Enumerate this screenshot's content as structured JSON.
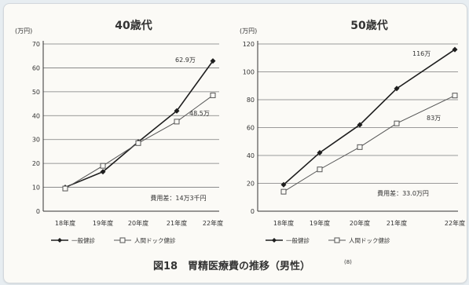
{
  "chart_data": [
    {
      "type": "line",
      "title": "40歳代",
      "y_unit": "(万円)",
      "ylim": [
        0,
        70
      ],
      "y_ticks": [
        "0",
        "10",
        "20",
        "30",
        "40",
        "50",
        "60",
        "70"
      ],
      "categories": [
        "18年度",
        "19年度",
        "20年度",
        "21年度",
        "22年度"
      ],
      "grid": "horizontal",
      "series": [
        {
          "name": "一般健診",
          "marker": "filled-diamond",
          "values": [
            10,
            16.5,
            29,
            42,
            62.9
          ]
        },
        {
          "name": "人間ドック健診",
          "marker": "open-square",
          "values": [
            9.5,
            19,
            28.5,
            37.5,
            48.5
          ]
        }
      ],
      "annotations": {
        "end_label_1": "62.9万",
        "end_label_2": "48.5万",
        "diff_label": "費用差：14万3千円"
      }
    },
    {
      "type": "line",
      "title": "50歳代",
      "y_unit": "(万円)",
      "ylim": [
        0,
        120
      ],
      "y_ticks": [
        "0",
        "20",
        "40",
        "60",
        "80",
        "100",
        "120"
      ],
      "categories": [
        "18年度",
        "19年度",
        "20年度",
        "21年度",
        "22年度"
      ],
      "grid": "horizontal",
      "series": [
        {
          "name": "一般健診",
          "marker": "filled-diamond",
          "values": [
            19,
            42,
            62,
            88,
            116
          ]
        },
        {
          "name": "人間ドック健診",
          "marker": "open-square",
          "values": [
            14,
            30,
            46,
            63,
            83
          ]
        }
      ],
      "annotations": {
        "end_label_1": "116万",
        "end_label_2": "83万",
        "diff_label": "費用差：33.0万円"
      }
    }
  ],
  "caption": "図18　胃精医療費の推移（男性）",
  "caption_ref": "(8)",
  "colors": {
    "background": "#fbfaf6",
    "line": "#222222",
    "grid": "#777777",
    "text": "#333333"
  }
}
